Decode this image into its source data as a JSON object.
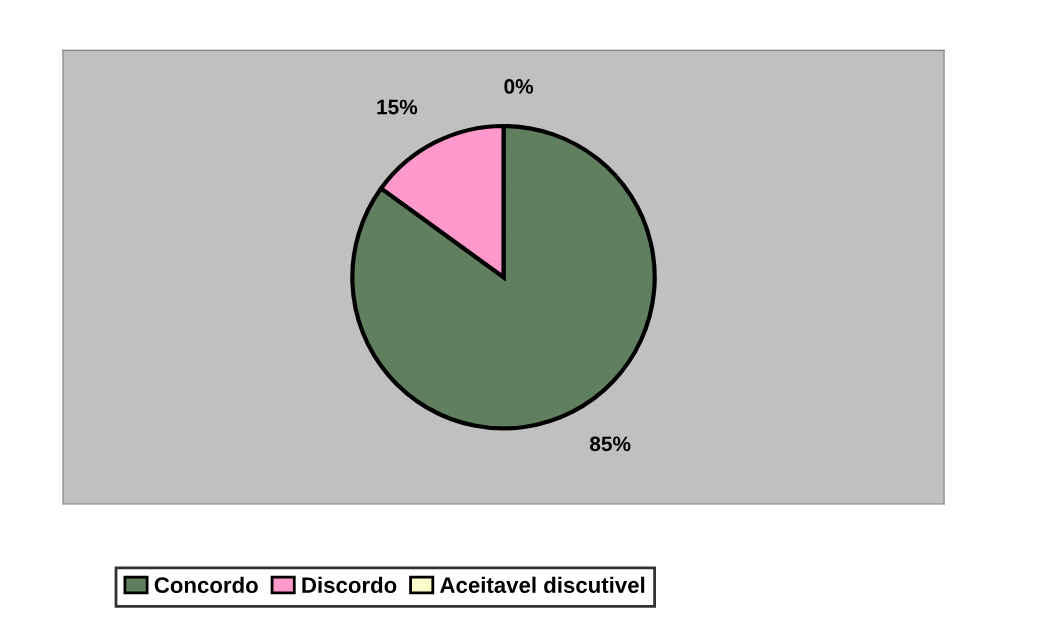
{
  "chart_data": {
    "type": "pie",
    "categories": [
      "Concordo",
      "Discordo",
      "Aceitavel discutivel"
    ],
    "values": [
      85,
      15,
      0
    ],
    "colors": [
      "#5f7f5f",
      "#ff99cc",
      "#ffffcc"
    ],
    "value_labels": [
      "85%",
      "15%",
      "0%"
    ],
    "legend": "bottom left"
  }
}
